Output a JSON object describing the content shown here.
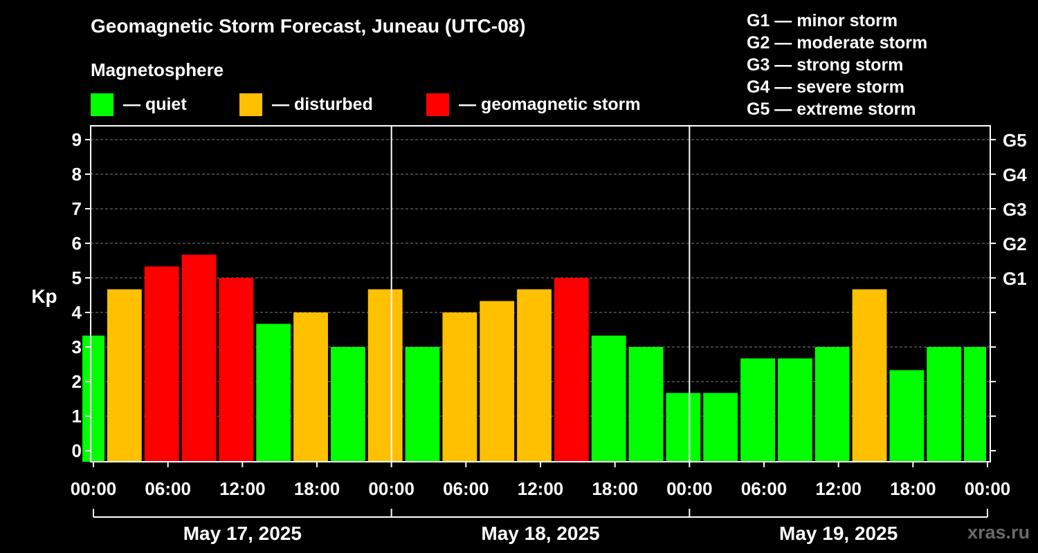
{
  "title": "Geomagnetic Storm Forecast, Juneau (UTC-08)",
  "subtitle": "Magnetosphere",
  "legend": [
    {
      "label": "— quiet",
      "color": "#00ff00"
    },
    {
      "label": "— disturbed",
      "color": "#ffc000"
    },
    {
      "label": "— geomagnetic storm",
      "color": "#ff0000"
    }
  ],
  "storm_scale": [
    "G1 — minor storm",
    "G2 — moderate storm",
    "G3 — strong storm",
    "G4 — severe storm",
    "G5 — extreme storm"
  ],
  "watermark": "xras.ru",
  "chart_data": {
    "type": "bar",
    "title": "Geomagnetic Storm Forecast, Juneau (UTC-08)",
    "ylabel": "Kp",
    "ylim": [
      0,
      9
    ],
    "yticks": [
      0,
      1,
      2,
      3,
      4,
      5,
      6,
      7,
      8,
      9
    ],
    "right_axis": [
      {
        "kp": 5,
        "label": "G1"
      },
      {
        "kp": 6,
        "label": "G2"
      },
      {
        "kp": 7,
        "label": "G3"
      },
      {
        "kp": 8,
        "label": "G4"
      },
      {
        "kp": 9,
        "label": "G5"
      }
    ],
    "x_range_hours": [
      -1,
      71
    ],
    "x_tick_labels": [
      "00:00",
      "06:00",
      "12:00",
      "18:00",
      "00:00",
      "06:00",
      "12:00",
      "18:00",
      "00:00",
      "06:00",
      "12:00",
      "18:00",
      "00:00"
    ],
    "x_tick_hours": [
      0,
      6,
      12,
      18,
      24,
      30,
      36,
      42,
      48,
      54,
      60,
      66,
      72
    ],
    "dates": [
      {
        "label": "May 17, 2025",
        "start_hour": 0,
        "end_hour": 24
      },
      {
        "label": "May 18, 2025",
        "start_hour": 24,
        "end_hour": 48
      },
      {
        "label": "May 19, 2025",
        "start_hour": 48,
        "end_hour": 72
      }
    ],
    "bars": [
      {
        "start": -1,
        "end": 1,
        "kp": 3.33,
        "level": "quiet"
      },
      {
        "start": 1,
        "end": 4,
        "kp": 4.67,
        "level": "disturbed"
      },
      {
        "start": 4,
        "end": 7,
        "kp": 5.33,
        "level": "storm"
      },
      {
        "start": 7,
        "end": 10,
        "kp": 5.67,
        "level": "storm"
      },
      {
        "start": 10,
        "end": 13,
        "kp": 5.0,
        "level": "storm"
      },
      {
        "start": 13,
        "end": 16,
        "kp": 3.67,
        "level": "quiet"
      },
      {
        "start": 16,
        "end": 19,
        "kp": 4.0,
        "level": "disturbed"
      },
      {
        "start": 19,
        "end": 22,
        "kp": 3.0,
        "level": "quiet"
      },
      {
        "start": 22,
        "end": 25,
        "kp": 4.67,
        "level": "disturbed"
      },
      {
        "start": 25,
        "end": 28,
        "kp": 3.0,
        "level": "quiet"
      },
      {
        "start": 28,
        "end": 31,
        "kp": 4.0,
        "level": "disturbed"
      },
      {
        "start": 31,
        "end": 34,
        "kp": 4.33,
        "level": "disturbed"
      },
      {
        "start": 34,
        "end": 37,
        "kp": 4.67,
        "level": "disturbed"
      },
      {
        "start": 37,
        "end": 40,
        "kp": 5.0,
        "level": "storm"
      },
      {
        "start": 40,
        "end": 43,
        "kp": 3.33,
        "level": "quiet"
      },
      {
        "start": 43,
        "end": 46,
        "kp": 3.0,
        "level": "quiet"
      },
      {
        "start": 46,
        "end": 49,
        "kp": 1.67,
        "level": "quiet"
      },
      {
        "start": 49,
        "end": 52,
        "kp": 1.67,
        "level": "quiet"
      },
      {
        "start": 52,
        "end": 55,
        "kp": 2.67,
        "level": "quiet"
      },
      {
        "start": 55,
        "end": 58,
        "kp": 2.67,
        "level": "quiet"
      },
      {
        "start": 58,
        "end": 61,
        "kp": 3.0,
        "level": "quiet"
      },
      {
        "start": 61,
        "end": 64,
        "kp": 4.67,
        "level": "disturbed"
      },
      {
        "start": 64,
        "end": 67,
        "kp": 2.33,
        "level": "quiet"
      },
      {
        "start": 67,
        "end": 70,
        "kp": 3.0,
        "level": "quiet"
      },
      {
        "start": 70,
        "end": 72,
        "kp": 3.0,
        "level": "quiet"
      }
    ],
    "level_colors": {
      "quiet": "#00ff00",
      "disturbed": "#ffc000",
      "storm": "#ff0000"
    }
  }
}
